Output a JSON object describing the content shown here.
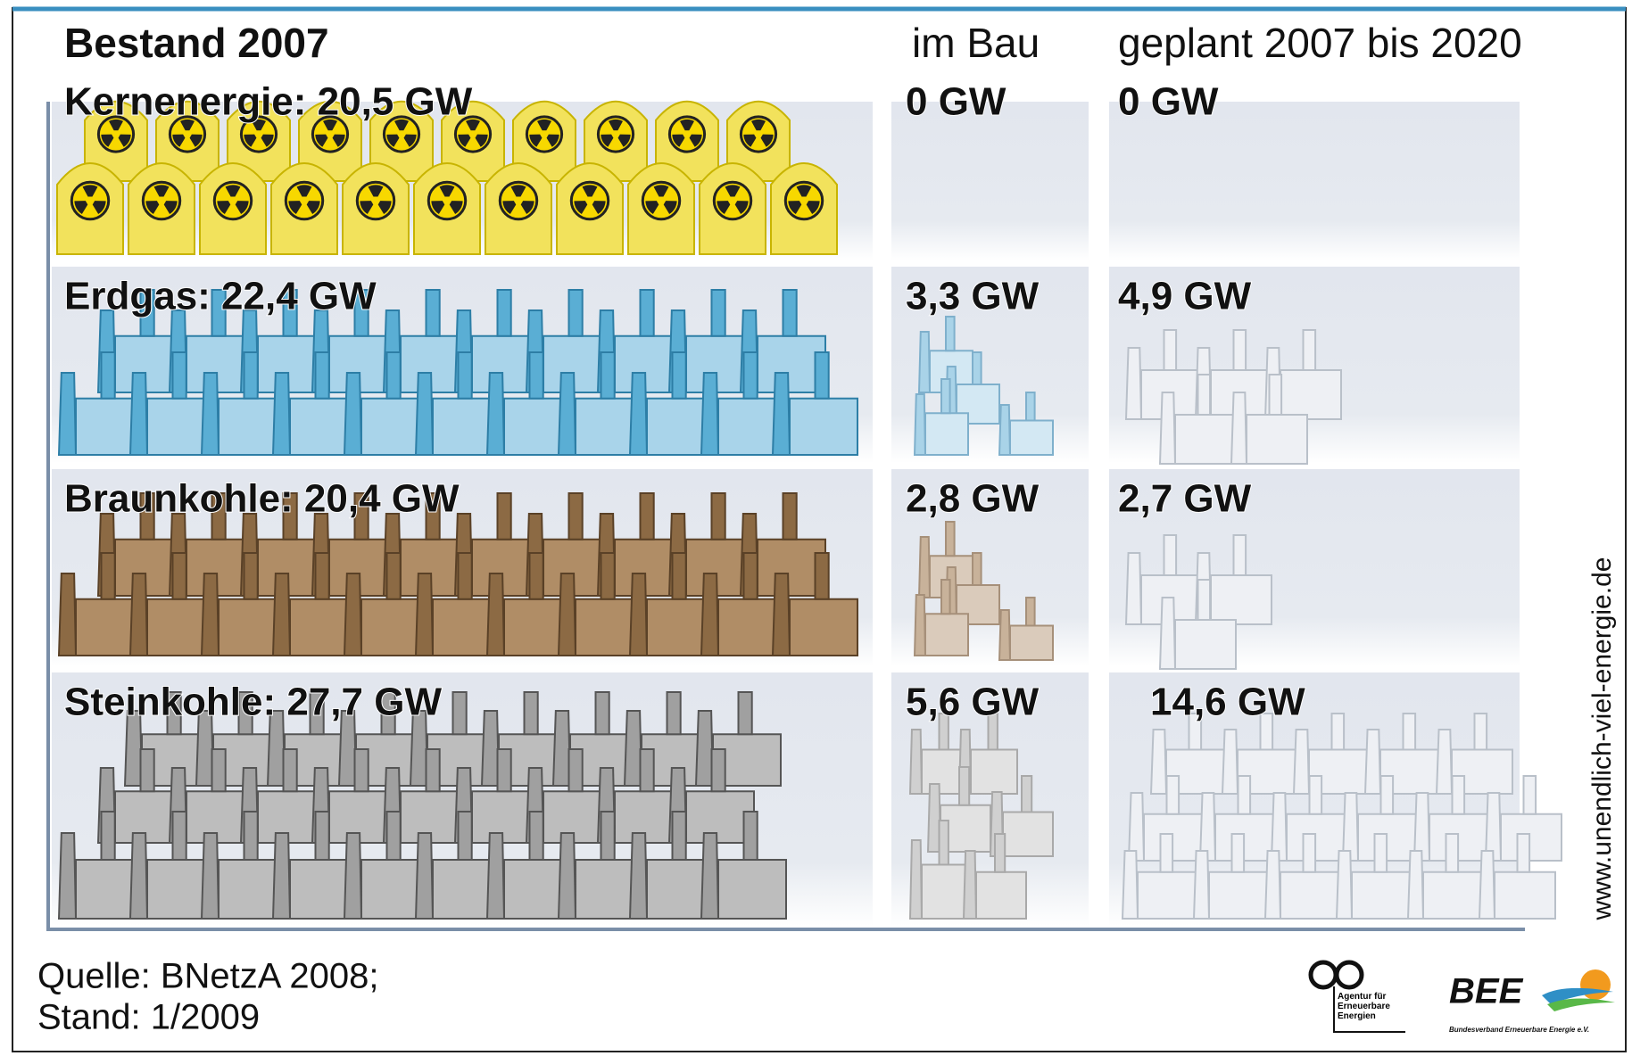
{
  "header": {
    "title": "Bestand 2007",
    "col_bau": "im Bau",
    "col_geplant": "geplant 2007 bis 2020"
  },
  "rows": [
    {
      "label": "Kernenergie: 20,5 GW",
      "bau": "0 GW",
      "geplant": "0 GW"
    },
    {
      "label": "Erdgas: 22,4 GW",
      "bau": "3,3 GW",
      "geplant": "4,9 GW"
    },
    {
      "label": "Braunkohle: 20,4 GW",
      "bau": "2,8 GW",
      "geplant": "2,7 GW"
    },
    {
      "label": "Steinkohle: 27,7  GW",
      "bau": "5,6 GW",
      "geplant": "14,6 GW"
    }
  ],
  "side_text": "www.unendlich-viel-energie.de",
  "footer": {
    "source": "Quelle: BNetzA 2008;",
    "date": "Stand: 1/2009"
  },
  "logos": {
    "agentur": "Agentur für Erneuerbare Energien",
    "bee": "BEE",
    "bee_sub": "Bundesverband Erneuerbare Energie e.V."
  }
}
